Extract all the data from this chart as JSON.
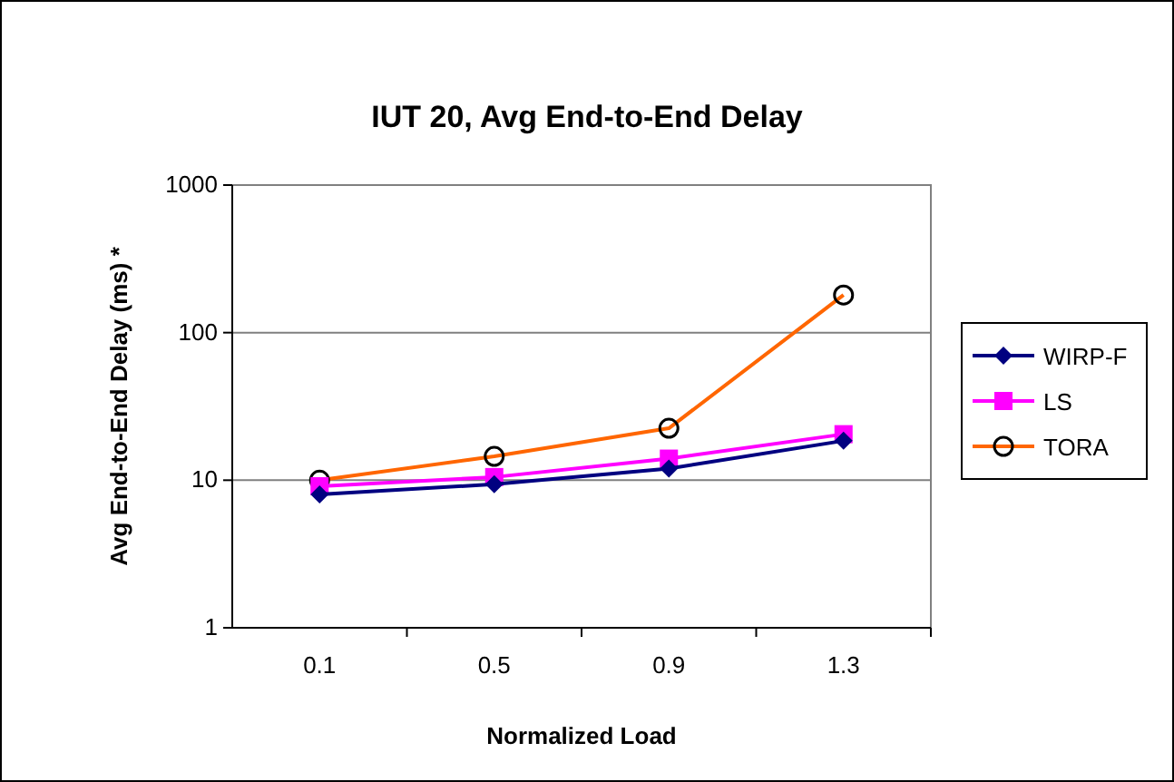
{
  "chart_data": {
    "type": "line",
    "title": "IUT 20, Avg End-to-End Delay",
    "xlabel": "Normalized Load",
    "ylabel": "Avg End-to-End Delay (ms) *",
    "categories": [
      "0.1",
      "0.5",
      "0.9",
      "1.3"
    ],
    "series": [
      {
        "name": "WIRP-F",
        "color": "#000080",
        "marker": "diamond",
        "values": [
          8,
          9.4,
          12,
          18.5
        ]
      },
      {
        "name": "LS",
        "color": "#ff00ff",
        "marker": "square",
        "values": [
          9.1,
          10.5,
          14,
          20.5
        ]
      },
      {
        "name": "TORA",
        "color": "#ff6600",
        "marker": "circle",
        "values": [
          10,
          14.5,
          22.5,
          180
        ]
      }
    ],
    "log": true,
    "ylim": [
      1,
      1000
    ],
    "yticks": [
      1,
      10,
      100,
      1000
    ],
    "grid": "y",
    "legend": "right"
  }
}
